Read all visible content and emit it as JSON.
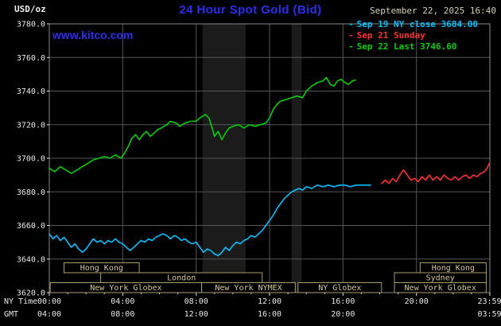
{
  "header": {
    "unit_label": "USD/oz",
    "title": "24 Hour Spot Gold (Bid)",
    "datetime": "September 22, 2025 16:40",
    "watermark": "www.kitco.com"
  },
  "legend_swatch": "-",
  "legend": [
    {
      "label": "Sep 19 NY close 3684.00",
      "color": "#00c0ff"
    },
    {
      "label": "Sep 21 Sunday",
      "color": "#ff3030"
    },
    {
      "label": "Sep 22 Last 3746.60",
      "color": "#00d000"
    }
  ],
  "colors": {
    "background": "#000000",
    "grid": "#565656",
    "frame": "#8a8a8a",
    "axis_text": "#e8e8e8",
    "axis_text2": "#e8e8e8",
    "title_blue": "#2d2def",
    "date_text": "#d8cfae"
  },
  "axes": {
    "y_ticks": [
      "3780.0",
      "3760.0",
      "3740.0",
      "3720.0",
      "3700.0",
      "3680.0",
      "3660.0",
      "3640.0",
      "3620.0"
    ],
    "x_ticks": [
      {
        "ny": "00:00",
        "gmt": "04:00",
        "hour": 0
      },
      {
        "ny": "04:00",
        "gmt": "08:00",
        "hour": 4
      },
      {
        "ny": "08:00",
        "gmt": "12:00",
        "hour": 8
      },
      {
        "ny": "12:00",
        "gmt": "16:00",
        "hour": 12
      },
      {
        "ny": "16:00",
        "gmt": "20:00",
        "hour": 16
      },
      {
        "ny": "20:00",
        "gmt": "",
        "hour": 20
      },
      {
        "ny": "23:59",
        "gmt": "03:59",
        "hour": 23.98
      }
    ],
    "row_labels": {
      "ny": "NY Time",
      "gmt": "GMT"
    }
  },
  "sessions": {
    "rows": 3,
    "box_border": "#ab9c6a",
    "label_color": "#d6c796",
    "items": [
      {
        "label": "Hong Kong",
        "row": 0,
        "start": 0.8,
        "end": 4.9
      },
      {
        "label": "Hong Kong",
        "row": 0,
        "start": 20.2,
        "end": 23.8
      },
      {
        "label": "London",
        "row": 1,
        "start": 2.8,
        "end": 11.6
      },
      {
        "label": "Sydney",
        "row": 1,
        "start": 18.8,
        "end": 23.8
      },
      {
        "label": "New York Globex",
        "row": 2,
        "start": 0.05,
        "end": 8.3
      },
      {
        "label": "New York NYMEX",
        "row": 2,
        "start": 8.3,
        "end": 13.4
      },
      {
        "label": "NY Globex",
        "row": 2,
        "start": 13.55,
        "end": 18.1
      },
      {
        "label": "New York Globex",
        "row": 2,
        "start": 18.8,
        "end": 23.8
      }
    ]
  },
  "chart_data": {
    "type": "line",
    "title": "24 Hour Spot Gold (Bid)",
    "ylabel": "USD/oz",
    "xlabel": "NY Time / GMT",
    "xlim": [
      0,
      24
    ],
    "ylim": [
      3620,
      3780
    ],
    "y_tick_step": 20,
    "grid": true,
    "legend_position": "top-right",
    "band_color": "#1b1b1b",
    "bands": [
      {
        "start": 8.35,
        "end": 10.7
      },
      {
        "start": 13.2,
        "end": 13.75
      }
    ],
    "series": [
      {
        "id": "sep19",
        "name": "Sep 19 NY close",
        "color": "#00c0ff",
        "close": 3684.0,
        "points": [
          [
            0,
            3655
          ],
          [
            0.2,
            3652
          ],
          [
            0.4,
            3654
          ],
          [
            0.6,
            3651
          ],
          [
            0.8,
            3653
          ],
          [
            1,
            3650
          ],
          [
            1.2,
            3647
          ],
          [
            1.4,
            3649
          ],
          [
            1.6,
            3646
          ],
          [
            1.8,
            3644
          ],
          [
            2,
            3646
          ],
          [
            2.2,
            3649
          ],
          [
            2.4,
            3652
          ],
          [
            2.6,
            3650
          ],
          [
            2.8,
            3651
          ],
          [
            3,
            3649
          ],
          [
            3.2,
            3651
          ],
          [
            3.4,
            3650
          ],
          [
            3.6,
            3652
          ],
          [
            3.8,
            3650
          ],
          [
            4,
            3649
          ],
          [
            4.2,
            3647
          ],
          [
            4.4,
            3645
          ],
          [
            4.6,
            3647
          ],
          [
            4.8,
            3649
          ],
          [
            5,
            3651
          ],
          [
            5.2,
            3650
          ],
          [
            5.4,
            3652
          ],
          [
            5.6,
            3651
          ],
          [
            5.8,
            3653
          ],
          [
            6,
            3654
          ],
          [
            6.2,
            3655
          ],
          [
            6.4,
            3654
          ],
          [
            6.6,
            3652
          ],
          [
            6.8,
            3654
          ],
          [
            7,
            3653
          ],
          [
            7.2,
            3651
          ],
          [
            7.4,
            3652
          ],
          [
            7.6,
            3650
          ],
          [
            7.8,
            3649
          ],
          [
            8,
            3650
          ],
          [
            8.2,
            3647
          ],
          [
            8.4,
            3644
          ],
          [
            8.6,
            3646
          ],
          [
            8.8,
            3645
          ],
          [
            9,
            3643
          ],
          [
            9.2,
            3642
          ],
          [
            9.4,
            3644
          ],
          [
            9.6,
            3647
          ],
          [
            9.8,
            3645
          ],
          [
            10,
            3648
          ],
          [
            10.2,
            3650
          ],
          [
            10.4,
            3649
          ],
          [
            10.6,
            3651
          ],
          [
            10.8,
            3652
          ],
          [
            11,
            3654
          ],
          [
            11.2,
            3653
          ],
          [
            11.4,
            3655
          ],
          [
            11.6,
            3657
          ],
          [
            11.8,
            3660
          ],
          [
            12,
            3663
          ],
          [
            12.2,
            3666
          ],
          [
            12.4,
            3670
          ],
          [
            12.6,
            3673
          ],
          [
            12.8,
            3676
          ],
          [
            13,
            3678
          ],
          [
            13.2,
            3680
          ],
          [
            13.4,
            3681
          ],
          [
            13.6,
            3682
          ],
          [
            13.8,
            3681
          ],
          [
            14,
            3683
          ],
          [
            14.3,
            3682
          ],
          [
            14.6,
            3684
          ],
          [
            14.9,
            3683
          ],
          [
            15.2,
            3684
          ],
          [
            15.5,
            3683
          ],
          [
            15.8,
            3684
          ],
          [
            16.1,
            3684
          ],
          [
            16.4,
            3683
          ],
          [
            16.7,
            3684
          ],
          [
            17,
            3684
          ],
          [
            17.5,
            3684
          ]
        ]
      },
      {
        "id": "sep21",
        "name": "Sep 21 Sunday",
        "color": "#ff3030",
        "points": [
          [
            18.1,
            3685
          ],
          [
            18.3,
            3687
          ],
          [
            18.5,
            3685
          ],
          [
            18.7,
            3688
          ],
          [
            18.9,
            3686
          ],
          [
            19.1,
            3690
          ],
          [
            19.3,
            3693
          ],
          [
            19.5,
            3690
          ],
          [
            19.7,
            3687
          ],
          [
            19.9,
            3688
          ],
          [
            20.1,
            3686
          ],
          [
            20.3,
            3689
          ],
          [
            20.5,
            3687
          ],
          [
            20.7,
            3690
          ],
          [
            20.9,
            3687
          ],
          [
            21.1,
            3689
          ],
          [
            21.3,
            3687
          ],
          [
            21.5,
            3690
          ],
          [
            21.7,
            3688
          ],
          [
            21.9,
            3687
          ],
          [
            22.1,
            3689
          ],
          [
            22.3,
            3687
          ],
          [
            22.5,
            3689
          ],
          [
            22.7,
            3690
          ],
          [
            22.9,
            3688
          ],
          [
            23.1,
            3690
          ],
          [
            23.3,
            3689
          ],
          [
            23.5,
            3691
          ],
          [
            23.7,
            3692
          ],
          [
            23.85,
            3694
          ],
          [
            23.98,
            3697
          ]
        ]
      },
      {
        "id": "sep22",
        "name": "Sep 22 Last",
        "color": "#00d000",
        "last": 3746.6,
        "points": [
          [
            0,
            3694
          ],
          [
            0.3,
            3692
          ],
          [
            0.6,
            3695
          ],
          [
            0.9,
            3693
          ],
          [
            1.2,
            3691
          ],
          [
            1.5,
            3693
          ],
          [
            1.8,
            3695
          ],
          [
            2.1,
            3697
          ],
          [
            2.4,
            3699
          ],
          [
            2.7,
            3700
          ],
          [
            3,
            3701
          ],
          [
            3.3,
            3700
          ],
          [
            3.6,
            3702
          ],
          [
            3.9,
            3700
          ],
          [
            4.1,
            3703
          ],
          [
            4.3,
            3707
          ],
          [
            4.5,
            3712
          ],
          [
            4.7,
            3714
          ],
          [
            4.9,
            3711
          ],
          [
            5.1,
            3714
          ],
          [
            5.3,
            3716
          ],
          [
            5.5,
            3713
          ],
          [
            5.7,
            3715
          ],
          [
            5.9,
            3717
          ],
          [
            6.1,
            3718
          ],
          [
            6.4,
            3720
          ],
          [
            6.6,
            3722
          ],
          [
            6.9,
            3721
          ],
          [
            7.1,
            3719
          ],
          [
            7.4,
            3721
          ],
          [
            7.7,
            3722
          ],
          [
            8,
            3722
          ],
          [
            8.2,
            3724
          ],
          [
            8.5,
            3726
          ],
          [
            8.7,
            3724
          ],
          [
            8.9,
            3717
          ],
          [
            9,
            3713
          ],
          [
            9.2,
            3716
          ],
          [
            9.4,
            3711
          ],
          [
            9.6,
            3715
          ],
          [
            9.8,
            3718
          ],
          [
            10,
            3719
          ],
          [
            10.3,
            3720
          ],
          [
            10.6,
            3718
          ],
          [
            10.9,
            3720
          ],
          [
            11.2,
            3719
          ],
          [
            11.5,
            3720
          ],
          [
            11.8,
            3721
          ],
          [
            12,
            3724
          ],
          [
            12.2,
            3729
          ],
          [
            12.4,
            3732
          ],
          [
            12.6,
            3734
          ],
          [
            12.9,
            3735
          ],
          [
            13.2,
            3736
          ],
          [
            13.5,
            3737
          ],
          [
            13.8,
            3736
          ],
          [
            14,
            3740
          ],
          [
            14.3,
            3743
          ],
          [
            14.6,
            3745
          ],
          [
            14.9,
            3746
          ],
          [
            15.1,
            3748
          ],
          [
            15.3,
            3744
          ],
          [
            15.5,
            3743
          ],
          [
            15.7,
            3746
          ],
          [
            15.9,
            3747
          ],
          [
            16.1,
            3745
          ],
          [
            16.3,
            3744
          ],
          [
            16.5,
            3746
          ],
          [
            16.67,
            3746.6
          ]
        ]
      }
    ]
  }
}
